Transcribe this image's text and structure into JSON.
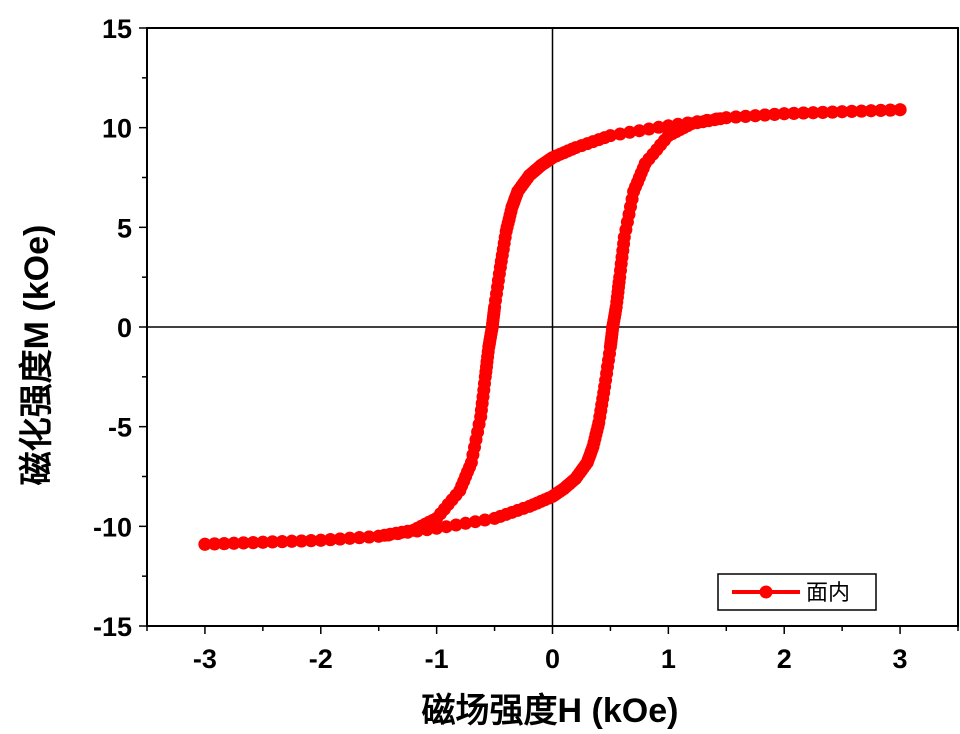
{
  "chart_data": {
    "type": "line",
    "title": "",
    "xlabel": "磁场强度H (kOe)",
    "ylabel": "磁化强度M (kOe)",
    "xlim": [
      -3.5,
      3.5
    ],
    "ylim": [
      -15,
      15
    ],
    "x_ticks": [
      "-3",
      "-2",
      "-1",
      "0",
      "1",
      "2",
      "3"
    ],
    "y_ticks": [
      "-15",
      "-10",
      "-5",
      "0",
      "5",
      "10",
      "15"
    ],
    "grid": false,
    "zero_lines": true,
    "legend_position": "bottom-right",
    "series": [
      {
        "name": "面内",
        "color": "#ff0000",
        "marker": "circle",
        "descending_branch": {
          "x": [
            3.0,
            2.5,
            2.0,
            1.5,
            1.0,
            0.5,
            0.2,
            0.0,
            -0.1,
            -0.2,
            -0.3,
            -0.35,
            -0.4,
            -0.45,
            -0.5,
            -0.52,
            -0.55,
            -0.58,
            -0.62,
            -0.7,
            -0.8,
            -1.0,
            -1.2,
            -1.5,
            -2.0,
            -2.5,
            -3.0
          ],
          "y": [
            10.9,
            10.8,
            10.7,
            10.5,
            10.1,
            9.6,
            9.0,
            8.5,
            8.1,
            7.6,
            6.8,
            6.0,
            4.8,
            3.0,
            1.0,
            0.0,
            -1.0,
            -2.5,
            -4.5,
            -6.8,
            -8.2,
            -9.6,
            -10.2,
            -10.5,
            -10.7,
            -10.8,
            -10.9
          ]
        },
        "ascending_branch": {
          "x": [
            -3.0,
            -2.5,
            -2.0,
            -1.5,
            -1.0,
            -0.5,
            -0.2,
            0.0,
            0.1,
            0.2,
            0.3,
            0.35,
            0.4,
            0.45,
            0.5,
            0.52,
            0.55,
            0.58,
            0.62,
            0.7,
            0.8,
            1.0,
            1.2,
            1.5,
            2.0,
            2.5,
            3.0
          ],
          "y": [
            -10.9,
            -10.8,
            -10.7,
            -10.5,
            -10.1,
            -9.6,
            -9.0,
            -8.5,
            -8.1,
            -7.6,
            -6.8,
            -6.0,
            -4.8,
            -3.0,
            -1.0,
            0.0,
            1.0,
            2.5,
            4.5,
            6.8,
            8.2,
            9.6,
            10.2,
            10.5,
            10.7,
            10.8,
            10.9
          ]
        }
      }
    ]
  }
}
